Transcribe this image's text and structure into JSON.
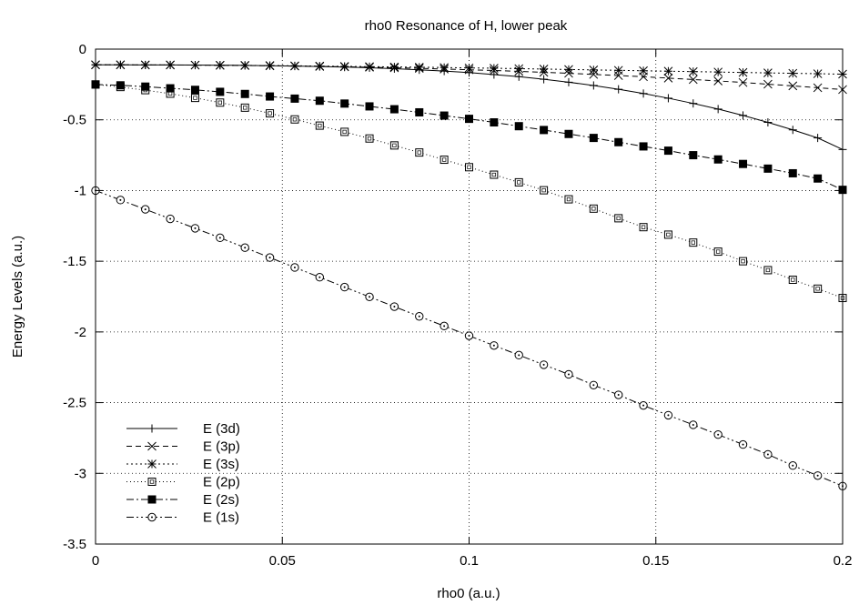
{
  "chart_data": {
    "type": "line",
    "title": "rho0 Resonance of H, lower peak",
    "xlabel": "rho0 (a.u.)",
    "ylabel": "Energy Levels (a.u.)",
    "xlim": [
      0,
      0.2
    ],
    "ylim": [
      -3.5,
      0
    ],
    "xticks": [
      0,
      0.05,
      0.1,
      0.15,
      0.2
    ],
    "xtick_labels": [
      "0",
      "0.05",
      "0.1",
      "0.15",
      "0.2"
    ],
    "yticks": [
      0,
      -0.5,
      -1,
      -1.5,
      -2,
      -2.5,
      -3,
      -3.5
    ],
    "ytick_labels": [
      "0",
      "-0.5",
      "-1",
      "-1.5",
      "-2",
      "-2.5",
      "-3",
      "-3.5"
    ],
    "grid": true,
    "legend_position": "bottom-left",
    "x": [
      0,
      0.006667,
      0.013333,
      0.02,
      0.026667,
      0.033333,
      0.04,
      0.046667,
      0.053333,
      0.06,
      0.066667,
      0.073333,
      0.08,
      0.086667,
      0.093333,
      0.1,
      0.106667,
      0.113333,
      0.12,
      0.126667,
      0.133333,
      0.14,
      0.146667,
      0.153333,
      0.16,
      0.166667,
      0.173333,
      0.18,
      0.186667,
      0.193333,
      0.2
    ],
    "series": [
      {
        "name": "E (3d)",
        "marker": "plus",
        "dash": "",
        "values": [
          -0.111,
          -0.111,
          -0.112,
          -0.112,
          -0.113,
          -0.114,
          -0.115,
          -0.117,
          -0.12,
          -0.123,
          -0.127,
          -0.132,
          -0.138,
          -0.146,
          -0.155,
          -0.166,
          -0.18,
          -0.195,
          -0.213,
          -0.234,
          -0.257,
          -0.284,
          -0.314,
          -0.347,
          -0.384,
          -0.424,
          -0.469,
          -0.518,
          -0.571,
          -0.628,
          -0.71
        ]
      },
      {
        "name": "E (3p)",
        "marker": "x",
        "dash": "6,4",
        "values": [
          -0.111,
          -0.111,
          -0.112,
          -0.112,
          -0.113,
          -0.114,
          -0.116,
          -0.118,
          -0.12,
          -0.122,
          -0.125,
          -0.128,
          -0.132,
          -0.136,
          -0.141,
          -0.146,
          -0.151,
          -0.157,
          -0.164,
          -0.171,
          -0.179,
          -0.187,
          -0.195,
          -0.205,
          -0.215,
          -0.225,
          -0.236,
          -0.248,
          -0.26,
          -0.273,
          -0.286
        ]
      },
      {
        "name": "E (3s)",
        "marker": "star",
        "dash": "2,3",
        "values": [
          -0.111,
          -0.111,
          -0.112,
          -0.112,
          -0.113,
          -0.114,
          -0.115,
          -0.116,
          -0.118,
          -0.12,
          -0.122,
          -0.124,
          -0.126,
          -0.128,
          -0.13,
          -0.133,
          -0.135,
          -0.138,
          -0.141,
          -0.144,
          -0.147,
          -0.15,
          -0.153,
          -0.156,
          -0.159,
          -0.162,
          -0.165,
          -0.168,
          -0.171,
          -0.174,
          -0.177
        ]
      },
      {
        "name": "E (2p)",
        "marker": "open-square",
        "dash": "1,3",
        "values": [
          -0.25,
          -0.268,
          -0.29,
          -0.315,
          -0.345,
          -0.378,
          -0.414,
          -0.454,
          -0.497,
          -0.541,
          -0.585,
          -0.632,
          -0.681,
          -0.731,
          -0.782,
          -0.835,
          -0.888,
          -0.942,
          -0.998,
          -1.062,
          -1.128,
          -1.196,
          -1.259,
          -1.312,
          -1.368,
          -1.432,
          -1.5,
          -1.563,
          -1.631,
          -1.694,
          -1.76
        ]
      },
      {
        "name": "E (2s)",
        "marker": "filled-square",
        "dash": "8,3,2,3",
        "values": [
          -0.25,
          -0.256,
          -0.265,
          -0.277,
          -0.288,
          -0.302,
          -0.317,
          -0.335,
          -0.35,
          -0.365,
          -0.385,
          -0.405,
          -0.425,
          -0.447,
          -0.47,
          -0.493,
          -0.518,
          -0.545,
          -0.572,
          -0.6,
          -0.628,
          -0.658,
          -0.688,
          -0.718,
          -0.75,
          -0.78,
          -0.812,
          -0.845,
          -0.878,
          -0.915,
          -0.995
        ]
      },
      {
        "name": "E (1s)",
        "marker": "open-circle",
        "dash": "8,3,2,3,2,3",
        "values": [
          -1.0,
          -1.067,
          -1.133,
          -1.2,
          -1.267,
          -1.334,
          -1.404,
          -1.474,
          -1.544,
          -1.613,
          -1.683,
          -1.752,
          -1.821,
          -1.89,
          -1.958,
          -2.027,
          -2.096,
          -2.164,
          -2.232,
          -2.3,
          -2.376,
          -2.445,
          -2.52,
          -2.589,
          -2.657,
          -2.726,
          -2.796,
          -2.866,
          -2.945,
          -3.016,
          -3.09
        ]
      }
    ]
  }
}
